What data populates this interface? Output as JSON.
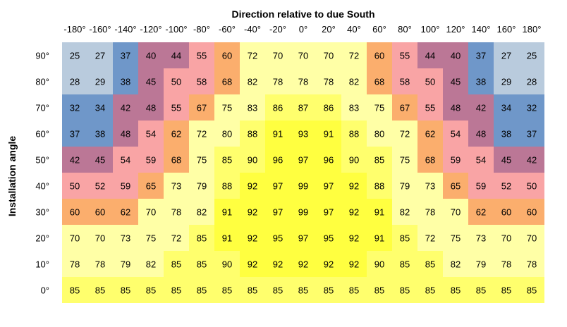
{
  "chart_data": {
    "type": "heatmap",
    "title": "Direction relative to due South",
    "xlabel": "Direction relative to due South",
    "ylabel": "Installation angle",
    "x_categories": [
      "-180°",
      "-160°",
      "-140°",
      "-120°",
      "-100°",
      "-80°",
      "-60°",
      "-40°",
      "-20°",
      "0°",
      "20°",
      "40°",
      "60°",
      "80°",
      "100°",
      "120°",
      "140°",
      "160°",
      "180°"
    ],
    "y_categories": [
      "90°",
      "80°",
      "70°",
      "60°",
      "50°",
      "40°",
      "30°",
      "20°",
      "10°",
      "0°"
    ],
    "values": [
      [
        25,
        27,
        37,
        40,
        44,
        55,
        60,
        72,
        70,
        70,
        70,
        72,
        60,
        55,
        44,
        40,
        37,
        27,
        25
      ],
      [
        28,
        29,
        38,
        45,
        50,
        58,
        68,
        82,
        78,
        78,
        78,
        82,
        68,
        58,
        50,
        45,
        38,
        29,
        28
      ],
      [
        32,
        34,
        42,
        48,
        55,
        67,
        75,
        83,
        86,
        87,
        86,
        83,
        75,
        67,
        55,
        48,
        42,
        34,
        32
      ],
      [
        37,
        38,
        48,
        54,
        62,
        72,
        80,
        88,
        91,
        93,
        91,
        88,
        80,
        72,
        62,
        54,
        48,
        38,
        37
      ],
      [
        42,
        45,
        54,
        59,
        68,
        75,
        85,
        90,
        96,
        97,
        96,
        90,
        85,
        75,
        68,
        59,
        54,
        45,
        42
      ],
      [
        50,
        52,
        59,
        65,
        73,
        79,
        88,
        92,
        97,
        99,
        97,
        92,
        88,
        79,
        73,
        65,
        59,
        52,
        50
      ],
      [
        60,
        60,
        62,
        70,
        78,
        82,
        91,
        92,
        97,
        99,
        97,
        92,
        91,
        82,
        78,
        70,
        62,
        60,
        60
      ],
      [
        70,
        70,
        73,
        75,
        72,
        85,
        91,
        92,
        95,
        97,
        95,
        92,
        91,
        85,
        72,
        75,
        73,
        70,
        70
      ],
      [
        78,
        78,
        79,
        82,
        85,
        85,
        90,
        92,
        92,
        92,
        92,
        92,
        90,
        85,
        85,
        82,
        79,
        78,
        78
      ],
      [
        85,
        85,
        85,
        85,
        85,
        85,
        85,
        85,
        85,
        85,
        85,
        85,
        85,
        85,
        85,
        85,
        85,
        85,
        85
      ]
    ],
    "color_scale": [
      {
        "max": 29,
        "color": "#b9cbdd"
      },
      {
        "max": 39,
        "color": "#6f97c9"
      },
      {
        "max": 49,
        "color": "#bb7796"
      },
      {
        "max": 59,
        "color": "#f9a4a5"
      },
      {
        "max": 69,
        "color": "#fbae6d"
      },
      {
        "max": 84,
        "color": "#ffffa6"
      },
      {
        "max": 90,
        "color": "#ffff6d"
      },
      {
        "max": 100,
        "color": "#ffff40"
      }
    ]
  }
}
